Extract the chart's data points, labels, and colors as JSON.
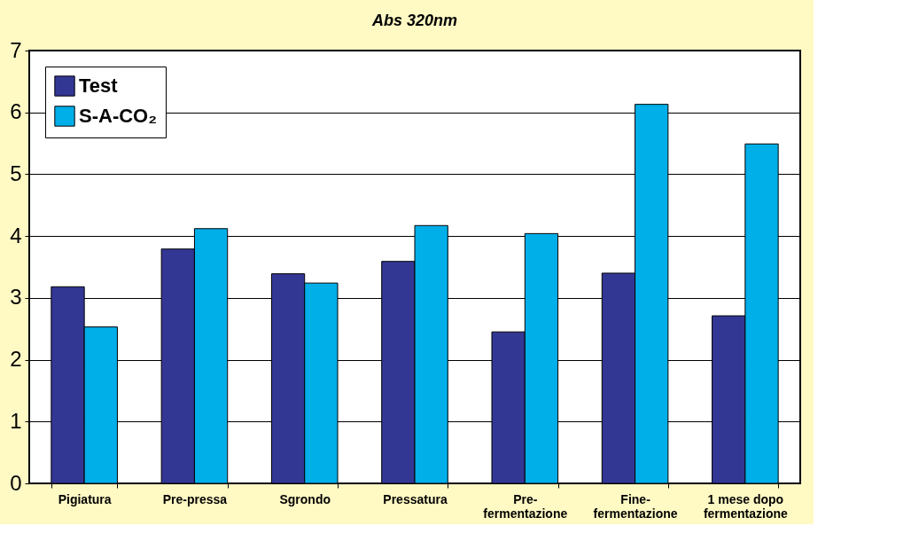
{
  "chart_data": {
    "type": "bar",
    "title": "Abs 320nm",
    "categories": [
      "Pigiatura",
      "Pre-pressa",
      "Sgrondo",
      "Pressatura",
      "Pre-fermentazione",
      "Fine-fermentazione",
      "1 mese dopo fermentazione"
    ],
    "series": [
      {
        "name": "Test",
        "color": "#333794",
        "values": [
          3.18,
          3.79,
          3.39,
          3.59,
          2.45,
          3.4,
          2.71
        ]
      },
      {
        "name": "S-A-CO₂",
        "color": "#00aee8",
        "values": [
          2.53,
          4.12,
          3.24,
          4.17,
          4.04,
          6.13,
          5.49
        ]
      }
    ],
    "ylim": [
      0,
      7
    ],
    "yticks": [
      0,
      1,
      2,
      3,
      4,
      5,
      6,
      7
    ],
    "grid": "y",
    "legend": "top left"
  }
}
